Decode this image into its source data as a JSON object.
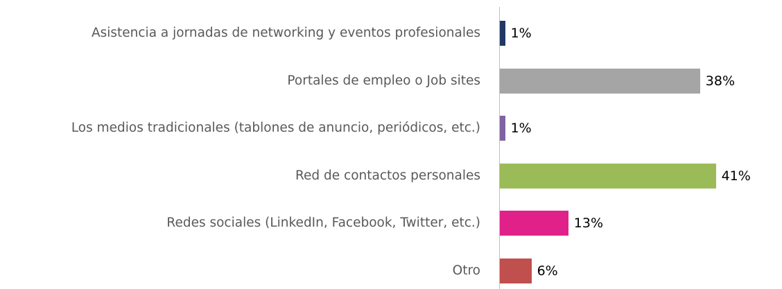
{
  "chart_data": {
    "type": "bar",
    "orientation": "horizontal",
    "categories": [
      "Asistencia a jornadas de networking y eventos profesionales",
      "Portales de empleo o Job sites",
      "Los medios tradicionales (tablones de anuncio, periódicos, etc.)",
      "Red de contactos personales",
      "Redes sociales (LinkedIn, Facebook, Twitter, etc.)",
      "Otro"
    ],
    "values": [
      1,
      38,
      1,
      41,
      13,
      6
    ],
    "value_labels": [
      "1%",
      "38%",
      "1%",
      "41%",
      "13%",
      "6%"
    ],
    "colors": [
      "#1f3864",
      "#a5a5a5",
      "#8064a2",
      "#9bbb59",
      "#e0218a",
      "#c0504d"
    ]
  }
}
